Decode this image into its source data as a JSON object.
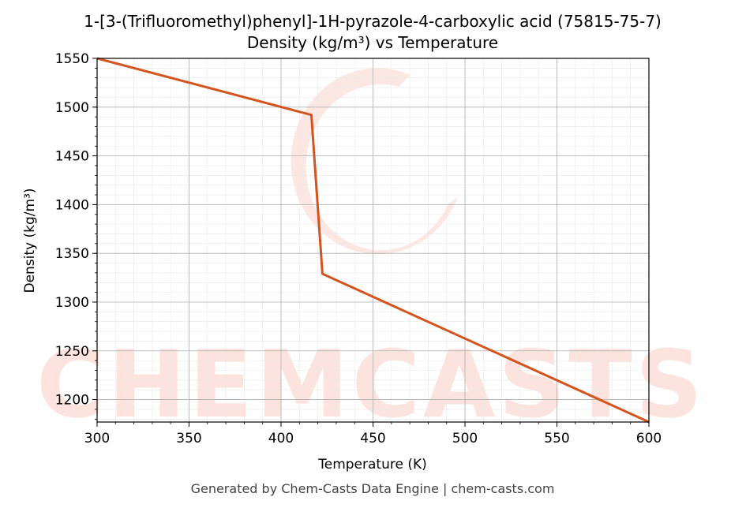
{
  "chart_data": {
    "type": "line",
    "title": "1-[3-(Trifluoromethyl)phenyl]-1H-pyrazole-4-carboxylic acid (75815-75-7)",
    "subtitle": "Density (kg/m³) vs Temperature",
    "xlabel": "Temperature (K)",
    "ylabel": "Density (kg/m³)",
    "xlim": [
      300,
      600
    ],
    "ylim": [
      1177,
      1550
    ],
    "x_ticks": [
      300,
      350,
      400,
      450,
      500,
      550,
      600
    ],
    "y_ticks": [
      1200,
      1250,
      1300,
      1350,
      1400,
      1450,
      1500,
      1550
    ],
    "grid": true,
    "series": [
      {
        "color": "#d4541f",
        "points": [
          [
            300,
            1550
          ],
          [
            416.5,
            1492
          ],
          [
            422.5,
            1329
          ],
          [
            600,
            1177
          ]
        ]
      }
    ]
  },
  "watermark": {
    "text": "CHEMCASTS",
    "color": "#fde3dd"
  },
  "footer": "Generated by Chem-Casts Data Engine | chem-casts.com"
}
